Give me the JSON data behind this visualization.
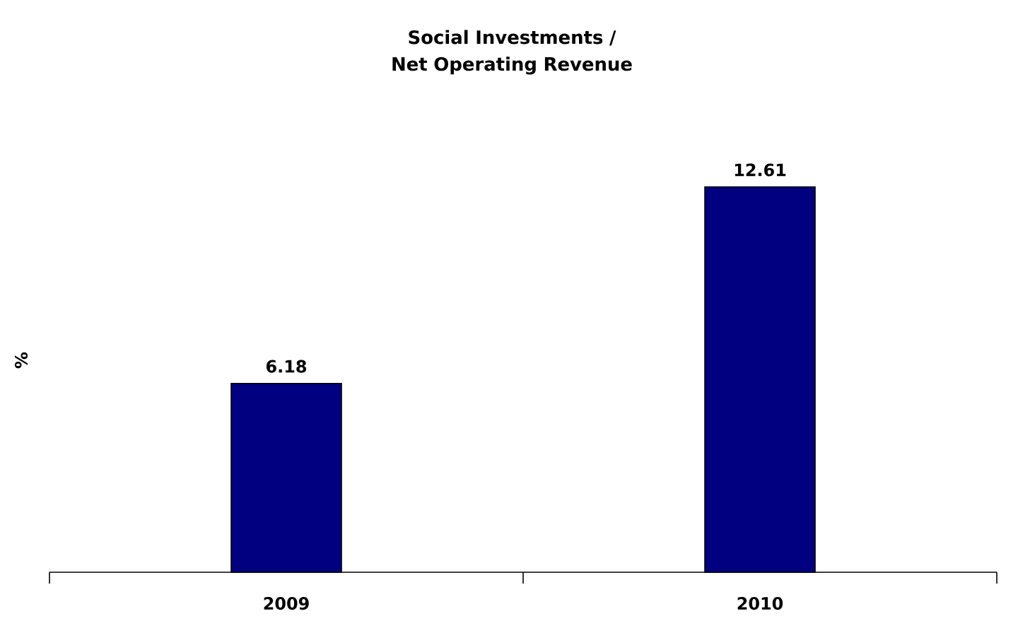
{
  "chart_data": {
    "type": "bar",
    "title": "Social Investments / Net Operating Revenue",
    "ylabel": "%",
    "categories": [
      "2009",
      "2010"
    ],
    "values": [
      6.18,
      12.61
    ],
    "color": "#000080",
    "data_labels": true
  }
}
